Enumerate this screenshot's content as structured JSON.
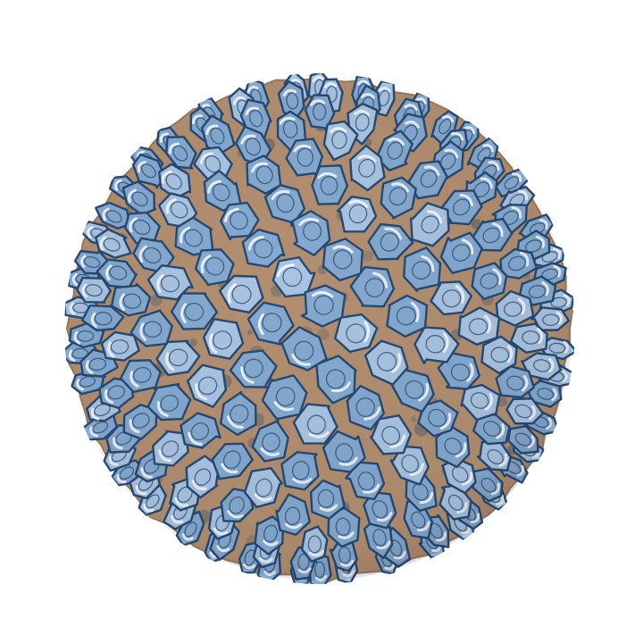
{
  "image": {
    "subject": "papillomavirus-capsid",
    "background_color": "#ffffff",
    "colors": {
      "capsid_base": "#b38f70",
      "capsid_base_dark": "#9a7a5e",
      "capsomer_fill": "#85a9d0",
      "capsomer_fill_light": "#a9c4e2",
      "capsomer_outline": "#274a72",
      "capsomer_shadow": "#4c5a68",
      "highlight": "#f4f8fc"
    }
  }
}
